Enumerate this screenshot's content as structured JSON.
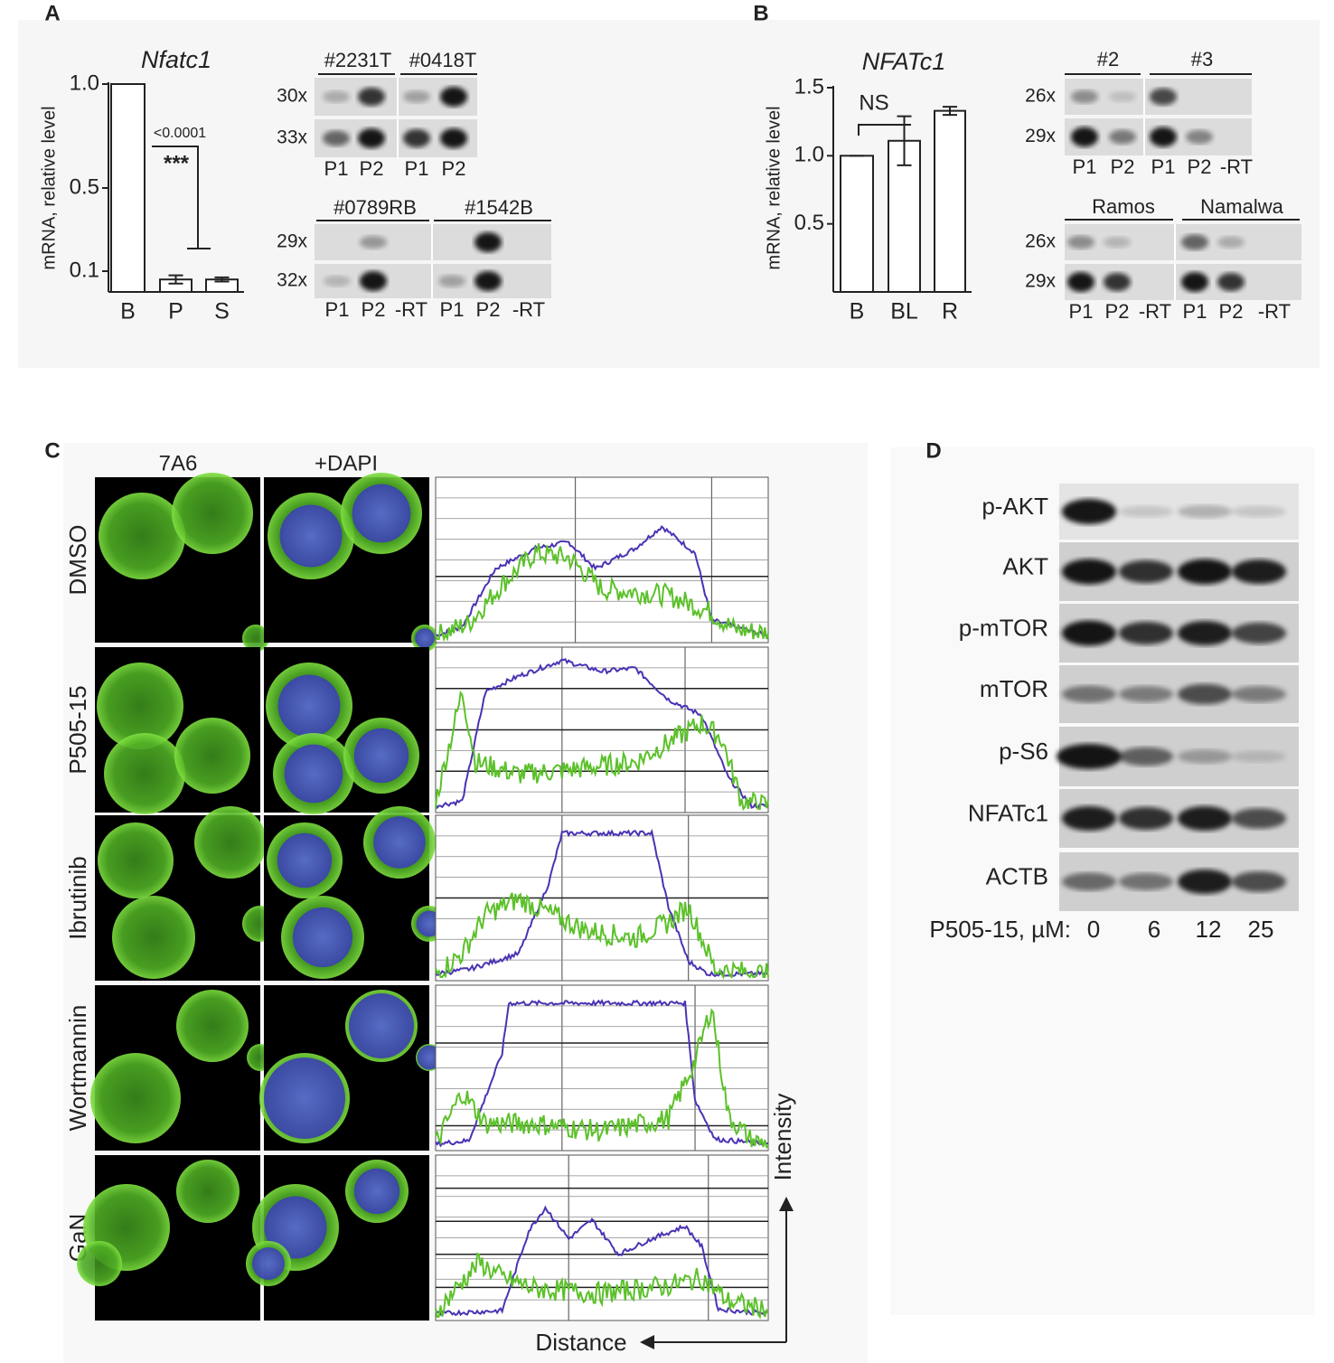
{
  "panel_labels": [
    "A",
    "B",
    "C",
    "D"
  ],
  "chart_data": [
    {
      "type": "bar",
      "title": "Nfatc1",
      "y_label": "mRNA, relative level",
      "categories": [
        "B",
        "P",
        "S"
      ],
      "values": [
        1.0,
        0.06,
        0.06
      ],
      "errors": [
        0,
        0.02,
        0.01
      ],
      "color": "#ffffff",
      "ylim": [
        0,
        1.0
      ],
      "yticks": [
        0.1,
        0.5,
        {
          "value": 1.0,
          "label": "1.0"
        }
      ],
      "annotations": [
        "<0.0001",
        "***"
      ]
    },
    {
      "type": "bar",
      "title": "NFATc1",
      "y_label": "mRNA, relative level",
      "categories": [
        "B",
        "BL",
        "R"
      ],
      "values": [
        1.0,
        1.11,
        1.33
      ],
      "errors": [
        0,
        0.18,
        0.03
      ],
      "color": "#ffffff",
      "ylim": [
        0,
        1.5
      ],
      "yticks": [
        0.5,
        {
          "value": 1.0,
          "label": "1.0"
        },
        1.5
      ],
      "annotations": [
        "NS"
      ]
    }
  ],
  "gels": [
    {
      "headers": [
        "#2231T",
        "#0418T"
      ],
      "rows": [
        "30x",
        "33x"
      ],
      "lanes": [
        "P1",
        "P2",
        "P1",
        "P2"
      ]
    },
    {
      "headers": [
        "#0789RB",
        "#1542B"
      ],
      "rows": [
        "29x",
        "32x"
      ],
      "lanes": [
        "P1",
        "P2",
        "-RT",
        "P1",
        "P2",
        "-RT"
      ]
    },
    {
      "headers": [
        "#2",
        "#3"
      ],
      "rows": [
        "26x",
        "29x"
      ],
      "lanes": [
        "P1",
        "P2",
        "P1",
        "P2",
        "-RT"
      ]
    },
    {
      "headers": [
        "Ramos",
        "Namalwa"
      ],
      "rows": [
        "26x",
        "29x"
      ],
      "lanes": [
        "P1",
        "P2",
        "-RT",
        "P1",
        "P2",
        "-RT"
      ]
    }
  ],
  "imaging": {
    "columns": [
      "7A6",
      "+DAPI"
    ],
    "rows": [
      "DMSO",
      "P505-15",
      "Ibrutinib",
      "Wortmannin",
      "GaN"
    ],
    "y_axis_label": "Intensity",
    "x_axis_label": "Distance"
  },
  "western": {
    "rows": [
      "p-AKT",
      "AKT",
      "p-mTOR",
      "mTOR",
      "p-S6",
      "NFATc1",
      "ACTB"
    ],
    "x_label": "P505-15, µM:",
    "lanes": [
      "0",
      "6",
      "12",
      "25"
    ]
  }
}
